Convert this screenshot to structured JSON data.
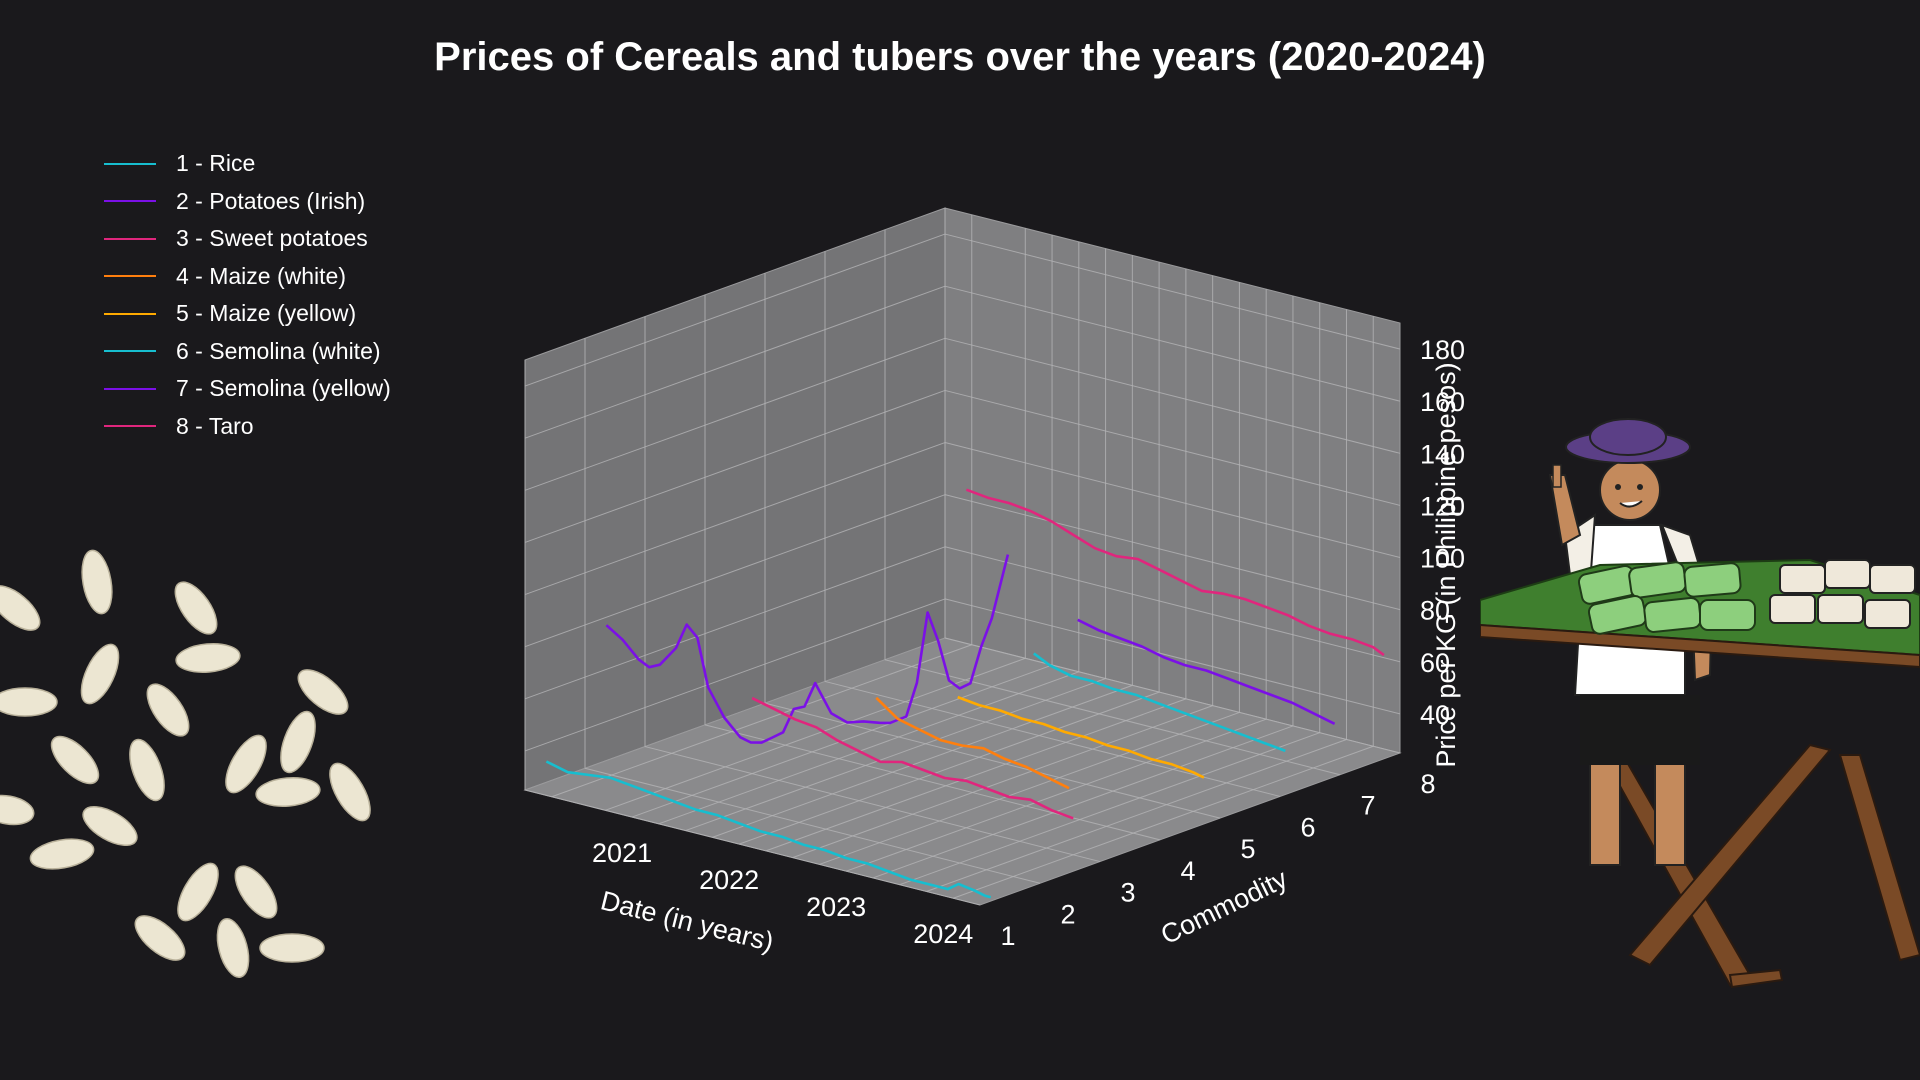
{
  "title": "Prices of Cereals and tubers over the years (2020-2024)",
  "colors": {
    "background": "#1a191c",
    "pane": "#7f7f81",
    "grid": "#b4b4b6",
    "text": "#ffffff"
  },
  "chart_data": {
    "type": "line",
    "projection": "3d",
    "title": "Prices of Cereals and tubers over the years (2020-2024)",
    "xlabel": "Date (in years)",
    "ylabel": "Commodity",
    "zlabel": "Price per KG (in Philippine pesos)",
    "x_ticks": [
      "2021",
      "2022",
      "2023",
      "2024"
    ],
    "y_ticks": [
      1,
      2,
      3,
      4,
      5,
      6,
      7,
      8
    ],
    "z_ticks": [
      40,
      60,
      80,
      100,
      120,
      140,
      160,
      180
    ],
    "xlim": [
      2020.0,
      2024.25
    ],
    "ylim": [
      1,
      8
    ],
    "zlim": [
      25,
      190
    ],
    "grid": true,
    "legend_position": "top-left",
    "series": [
      {
        "name": "1 - Rice",
        "commodity": 1,
        "color": "#17becf",
        "x": [
          2020.2,
          2020.4,
          2020.6,
          2020.8,
          2021.0,
          2021.2,
          2021.4,
          2021.6,
          2021.8,
          2022.0,
          2022.2,
          2022.4,
          2022.6,
          2022.8,
          2023.0,
          2023.2,
          2023.4,
          2023.6,
          2023.8,
          2023.95,
          2024.05,
          2024.2,
          2024.3,
          2024.35
        ],
        "y": [
          38,
          36,
          37,
          38,
          37,
          36,
          35,
          34,
          34,
          33,
          32,
          32,
          31,
          31,
          30,
          30,
          29,
          28,
          28,
          28,
          31,
          30,
          29,
          29
        ]
      },
      {
        "name": "2 - Potatoes (Irish)",
        "commodity": 2,
        "color": "#7b10e6",
        "x": [
          2020.2,
          2020.35,
          2020.5,
          2020.6,
          2020.7,
          2020.85,
          2020.95,
          2021.05,
          2021.15,
          2021.3,
          2021.45,
          2021.55,
          2021.65,
          2021.75,
          2021.85,
          2021.95,
          2022.05,
          2022.15,
          2022.3,
          2022.45,
          2022.6,
          2022.75,
          2022.85,
          2023.0,
          2023.1,
          2023.2,
          2023.3,
          2023.4,
          2023.5,
          2023.6,
          2023.7,
          2023.8,
          2023.95
        ],
        "y": [
          82,
          78,
          72,
          70,
          72,
          80,
          90,
          86,
          68,
          58,
          52,
          51,
          52,
          55,
          58,
          68,
          70,
          80,
          70,
          68,
          70,
          71,
          72,
          76,
          90,
          118,
          108,
          94,
          92,
          95,
          110,
          122,
          148
        ]
      },
      {
        "name": "3 - Sweet potatoes",
        "commodity": 3,
        "color": "#e0267d",
        "x": [
          2021.0,
          2021.2,
          2021.4,
          2021.6,
          2021.8,
          2022.0,
          2022.2,
          2022.4,
          2022.6,
          2022.8,
          2023.0,
          2023.2,
          2023.4,
          2023.6,
          2023.8,
          2024.0
        ],
        "y": [
          54,
          52,
          50,
          49,
          46,
          44,
          42,
          44,
          43,
          42,
          43,
          42,
          41,
          42,
          40,
          39
        ]
      },
      {
        "name": "4 - Maize (white)",
        "commodity": 4,
        "color": "#ff7f0e",
        "x": [
          2021.6,
          2021.8,
          2022.0,
          2022.2,
          2022.4,
          2022.6,
          2022.8,
          2023.0,
          2023.2,
          2023.4
        ],
        "y": [
          52,
          46,
          44,
          42,
          42,
          43,
          41,
          40,
          38,
          36
        ]
      },
      {
        "name": "5 - Maize (yellow)",
        "commodity": 5,
        "color": "#ffaa00",
        "x": [
          2021.8,
          2022.0,
          2022.2,
          2022.4,
          2022.6,
          2022.8,
          2023.0,
          2023.2,
          2023.4,
          2023.6,
          2023.8,
          2024.0,
          2024.1
        ],
        "y": [
          46,
          45,
          45,
          44,
          44,
          43,
          43,
          42,
          42,
          41,
          41,
          40,
          39
        ]
      },
      {
        "name": "6 - Semolina (white)",
        "commodity": 6,
        "color": "#17becf",
        "x": [
          2021.95,
          2022.1,
          2022.3,
          2022.5,
          2022.7,
          2022.9,
          2023.1,
          2023.3,
          2023.5,
          2023.7,
          2023.9,
          2024.1,
          2024.3
        ],
        "y": [
          56,
          53,
          51,
          51,
          50,
          50,
          49,
          48,
          47,
          46,
          45,
          44,
          43
        ]
      },
      {
        "name": "7 - Semolina (yellow)",
        "commodity": 7,
        "color": "#7b10e6",
        "x": [
          2021.8,
          2022.0,
          2022.2,
          2022.4,
          2022.6,
          2022.8,
          2023.0,
          2023.2,
          2023.4,
          2023.6,
          2023.8,
          2024.0,
          2024.2
        ],
        "y": [
          59,
          57,
          56,
          55,
          53,
          52,
          52,
          51,
          50,
          49,
          48,
          46,
          44
        ]
      },
      {
        "name": "8 - Taro",
        "commodity": 8,
        "color": "#e0267d",
        "x": [
          2020.2,
          2020.4,
          2020.6,
          2020.8,
          2021.0,
          2021.2,
          2021.4,
          2021.6,
          2021.8,
          2022.0,
          2022.2,
          2022.4,
          2022.6,
          2022.8,
          2023.0,
          2023.2,
          2023.4,
          2023.6,
          2023.8,
          2024.0,
          2024.1
        ],
        "y": [
          84,
          83,
          83,
          82,
          80,
          77,
          74,
          73,
          74,
          72,
          70,
          68,
          69,
          69,
          68,
          67,
          65,
          64,
          64,
          63,
          61
        ]
      }
    ]
  }
}
